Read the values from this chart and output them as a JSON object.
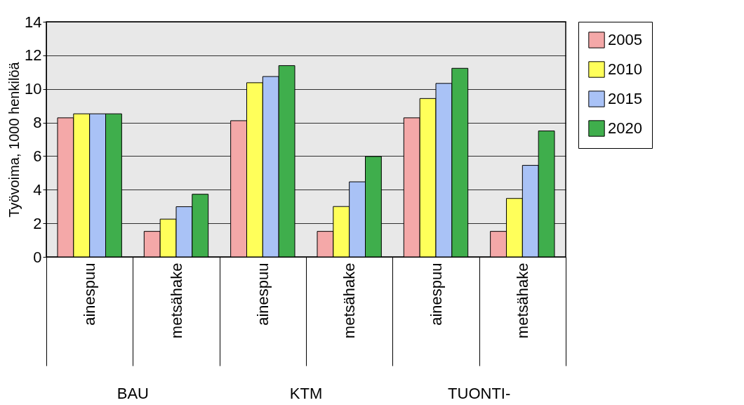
{
  "chart_data": {
    "type": "bar",
    "ylabel": "Työvoima, 1000  henkilöä",
    "categories": [
      "ainespuu",
      "metsähake",
      "ainespuu",
      "metsähake",
      "ainespuu",
      "metsähake"
    ],
    "annotations": [
      "BAU",
      "KTM",
      "TUONTI-"
    ],
    "series": [
      {
        "name": "2005",
        "color": "#f4a8a8",
        "values": [
          8.28,
          1.52,
          8.11,
          1.52,
          8.28,
          1.52
        ]
      },
      {
        "name": "2010",
        "color": "#ffff5a",
        "values": [
          8.52,
          2.25,
          10.37,
          3.0,
          9.43,
          3.48
        ]
      },
      {
        "name": "2015",
        "color": "#a9c2f6",
        "values": [
          8.52,
          2.99,
          10.74,
          4.47,
          10.33,
          5.45
        ]
      },
      {
        "name": "2020",
        "color": "#3fae4c",
        "values": [
          8.52,
          3.73,
          11.39,
          5.98,
          11.23,
          7.5
        ]
      }
    ],
    "ylim": [
      0,
      14
    ],
    "yticks": [
      0,
      2,
      4,
      6,
      8,
      10,
      12,
      14
    ],
    "grid": "y",
    "legend": "right"
  }
}
